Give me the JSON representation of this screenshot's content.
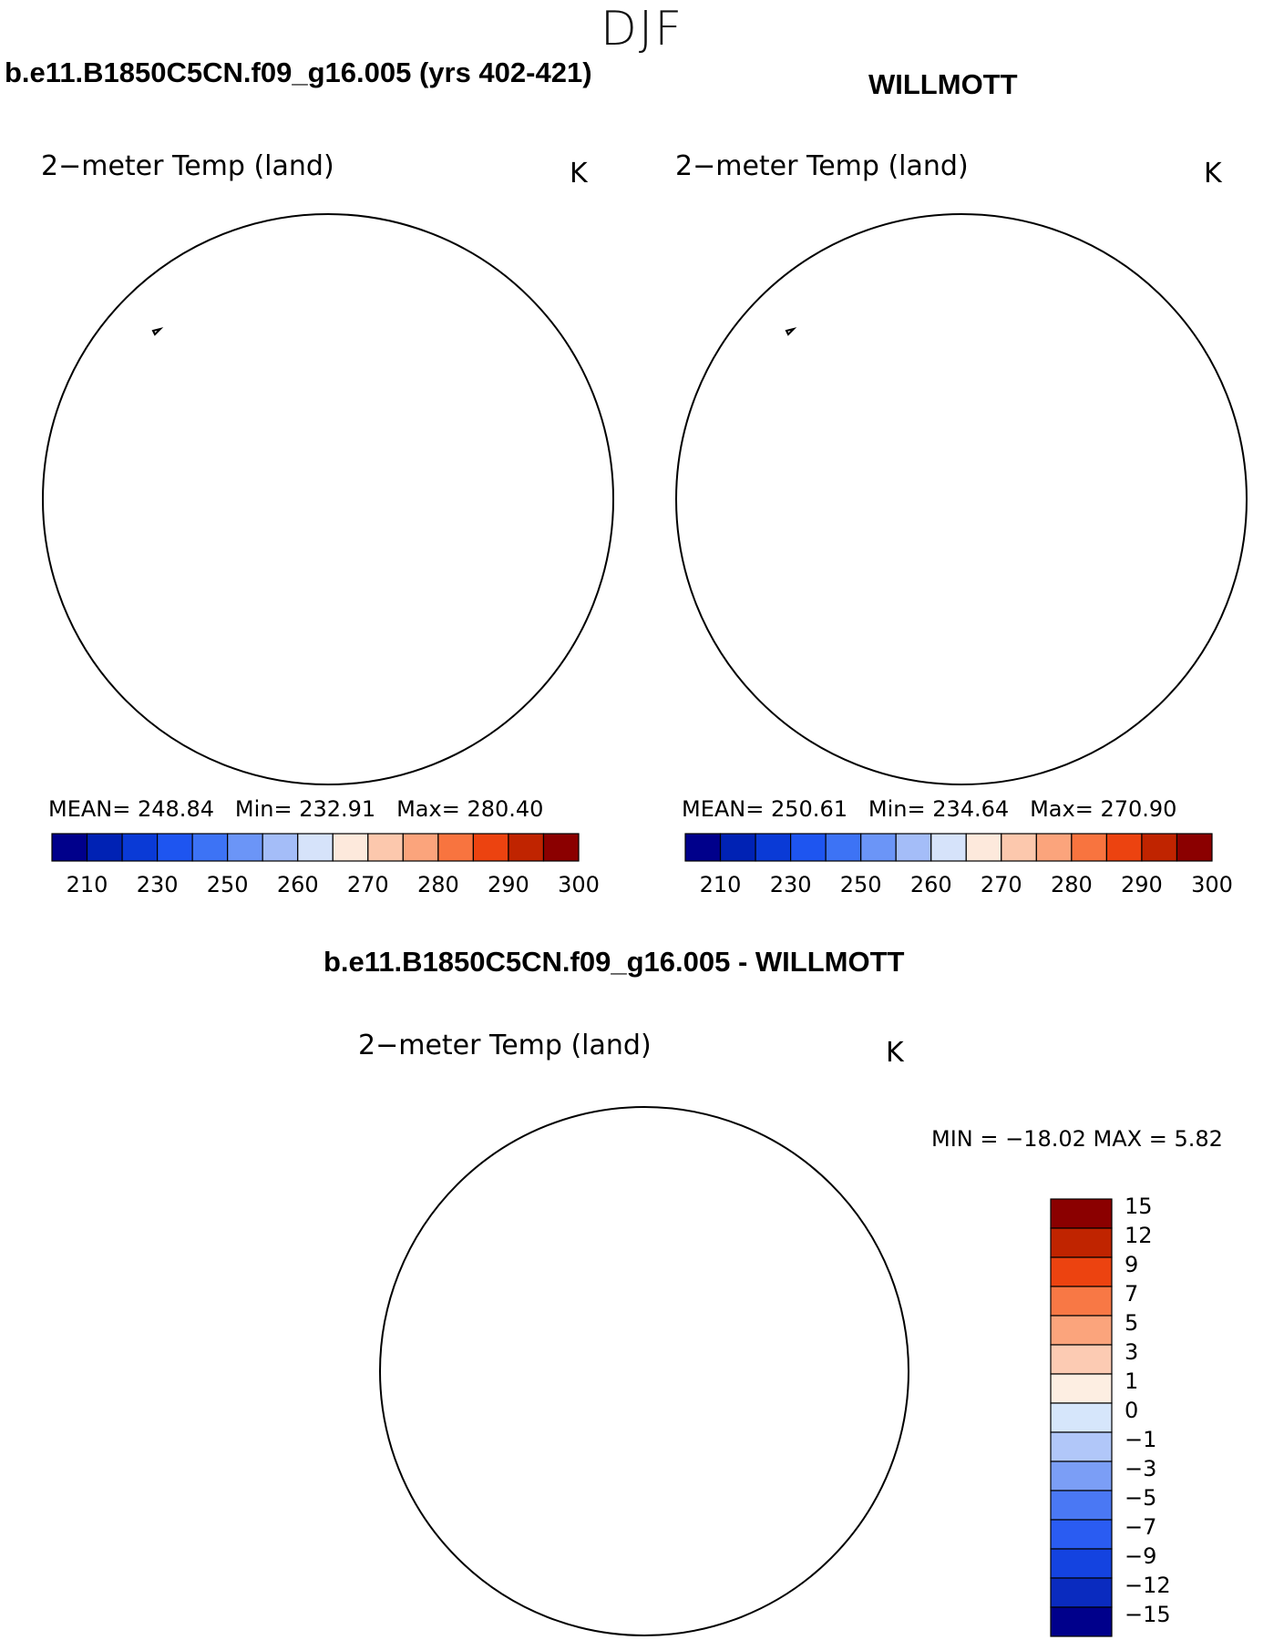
{
  "header": {
    "season": "DJF"
  },
  "panels": [
    {
      "title": "b.e11.B1850C5CN.f09_g16.005 (yrs 402-421)",
      "variable": "2−meter Temp (land)",
      "units": "K",
      "stats": {
        "mean_label": "MEAN=",
        "mean": "248.84",
        "min_label": "Min=",
        "min": "232.91",
        "max_label": "Max=",
        "max": "280.40"
      }
    },
    {
      "title": "WILLMOTT",
      "variable": "2−meter Temp (land)",
      "units": "K",
      "stats": {
        "mean_label": "MEAN=",
        "mean": "250.61",
        "min_label": "Min=",
        "min": "234.64",
        "max_label": "Max=",
        "max": "270.90"
      }
    }
  ],
  "difference": {
    "title": "b.e11.B1850C5CN.f09_g16.005 - WILLMOTT",
    "variable": "2−meter Temp (land)",
    "units": "K",
    "minmax": "MIN = −18.02 MAX =    5.82"
  },
  "colorbars": {
    "absolute": {
      "colors": [
        "#00008b",
        "#0022b4",
        "#0a3ad6",
        "#1e55f0",
        "#3d73f5",
        "#6b95f7",
        "#a4bdf8",
        "#d6e3fa",
        "#fde9dc",
        "#fcc8ad",
        "#fba47c",
        "#f8743f",
        "#ec4310",
        "#c02400",
        "#8b0000"
      ],
      "ticks": [
        "210",
        "230",
        "250",
        "260",
        "270",
        "280",
        "290",
        "300"
      ]
    },
    "difference": {
      "colors": [
        "#00008b",
        "#0a2bbf",
        "#1443e0",
        "#2a5cf2",
        "#4a78f4",
        "#7b9ef6",
        "#b1c7f9",
        "#d6e6fb",
        "#fdeee2",
        "#fccbb3",
        "#fba47c",
        "#f87845",
        "#ec4310",
        "#c02400",
        "#8b0000"
      ],
      "ticks": [
        "−15",
        "−12",
        "−9",
        "−7",
        "−5",
        "−3",
        "−1",
        "0",
        "1",
        "3",
        "5",
        "7",
        "9",
        "12",
        "15"
      ]
    }
  }
}
